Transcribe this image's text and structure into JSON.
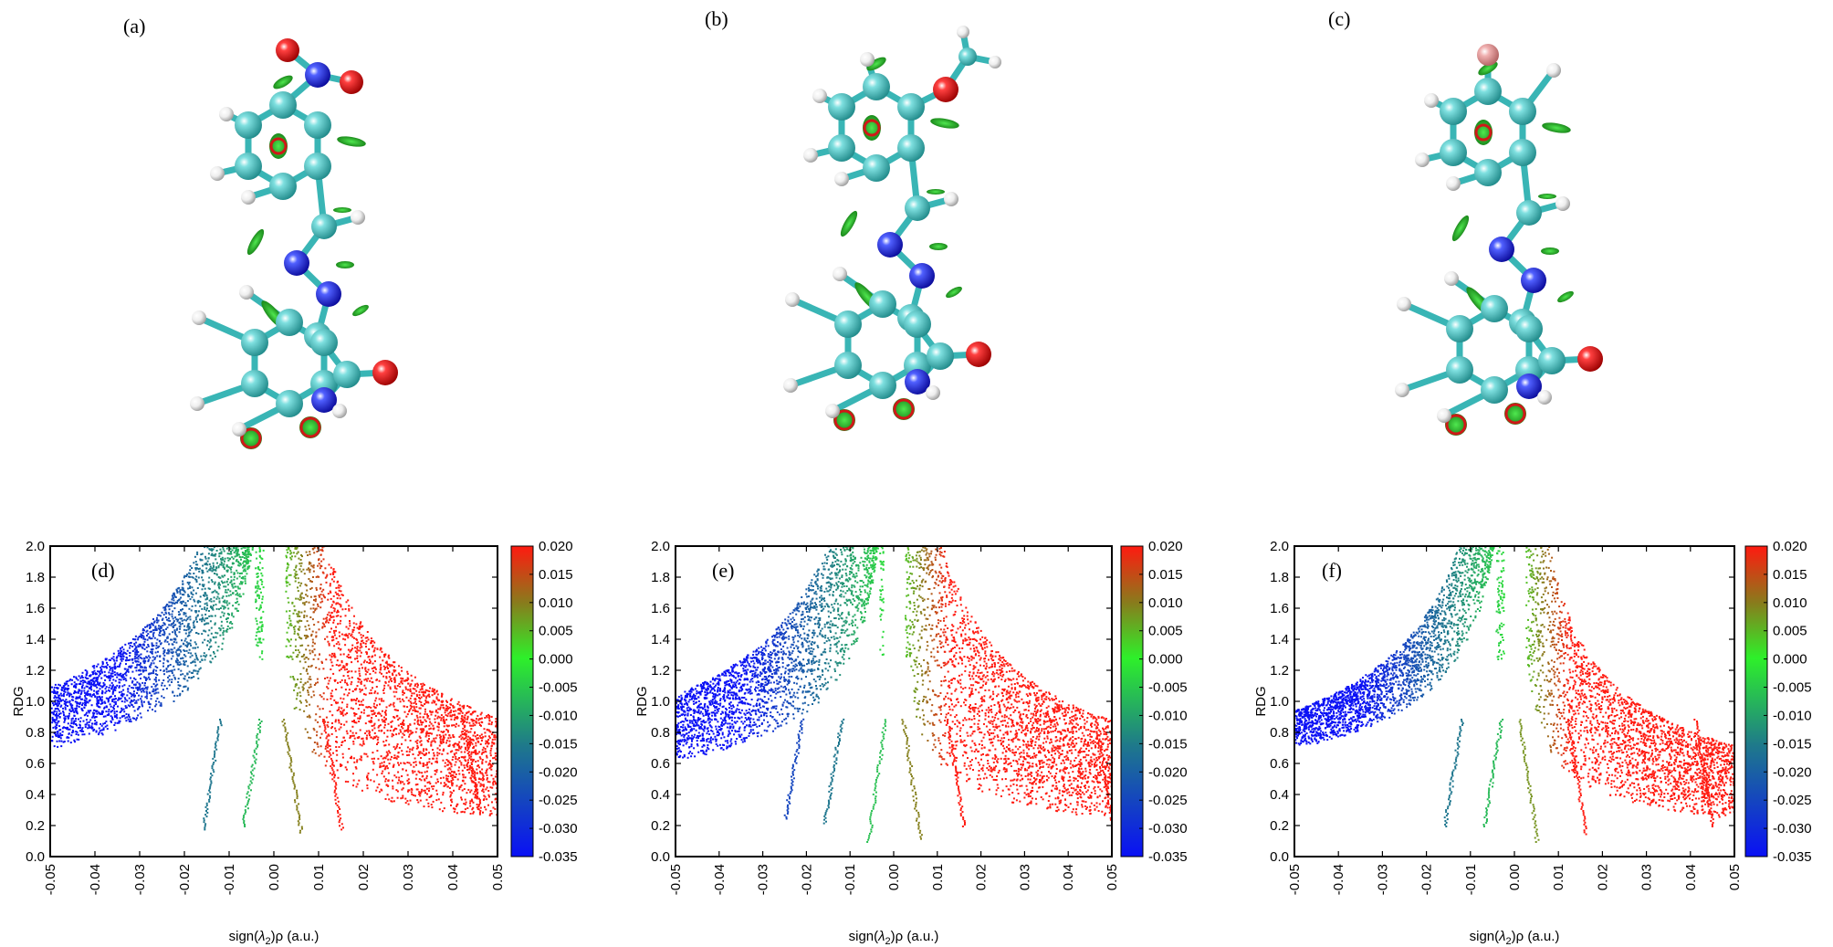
{
  "molecule_panels": [
    {
      "label": "(a)",
      "substituent": "nitro"
    },
    {
      "label": "(b)",
      "substituent": "methoxy"
    },
    {
      "label": "(c)",
      "substituent": "halogen"
    }
  ],
  "colors": {
    "carbon": "#3fb8b8",
    "nitrogen": "#1f2ee0",
    "oxygen": "#e01010",
    "hydrogen": "#e8e8e8",
    "halogen": "#e7a2a2",
    "bond": "#39b5b5",
    "isosurface_green": "#2fd12f",
    "isosurface_red": "#d01818"
  },
  "chart_data": [
    {
      "type": "scatter",
      "panel_label": "(d)",
      "xlabel": "sign(λ2)ρ (a.u.)",
      "ylabel": "RDG",
      "xlim": [
        -0.05,
        0.05
      ],
      "ylim": [
        0.0,
        2.0
      ],
      "xticks": [
        "-0.05",
        "-0.04",
        "-0.03",
        "-0.02",
        "-0.01",
        "0.00",
        "0.01",
        "0.02",
        "0.03",
        "0.04",
        "0.05"
      ],
      "yticks": [
        "0.0",
        "0.2",
        "0.4",
        "0.6",
        "0.8",
        "1.0",
        "1.2",
        "1.4",
        "1.6",
        "1.8",
        "2.0"
      ],
      "colorbar": {
        "range": [
          -0.035,
          0.02
        ],
        "ticks": [
          "0.020",
          "0.015",
          "0.010",
          "0.005",
          "0.000",
          "-0.005",
          "-0.010",
          "-0.015",
          "-0.020",
          "-0.025",
          "-0.030",
          "-0.035"
        ]
      },
      "spike_points": [
        [
          -0.016,
          0.18
        ],
        [
          -0.007,
          0.2
        ],
        [
          0.006,
          0.16
        ],
        [
          0.015,
          0.18
        ],
        [
          0.046,
          0.3
        ]
      ],
      "band": {
        "left_low_at_edge": 0.7,
        "left_high_at_edge": 1.1,
        "right_low_at_edge": 0.25,
        "right_high_at_edge": 0.9
      }
    },
    {
      "type": "scatter",
      "panel_label": "(e)",
      "xlabel": "sign(λ2)ρ (a.u.)",
      "ylabel": "RDG",
      "xlim": [
        -0.05,
        0.05
      ],
      "ylim": [
        0.0,
        2.0
      ],
      "xticks": [
        "-0.05",
        "-0.04",
        "-0.03",
        "-0.02",
        "-0.01",
        "0.00",
        "0.01",
        "0.02",
        "0.03",
        "0.04",
        "0.05"
      ],
      "yticks": [
        "0.0",
        "0.2",
        "0.4",
        "0.6",
        "0.8",
        "1.0",
        "1.2",
        "1.4",
        "1.6",
        "1.8",
        "2.0"
      ],
      "colorbar": {
        "range": [
          -0.035,
          0.02
        ],
        "ticks": [
          "0.020",
          "0.015",
          "0.010",
          "0.005",
          "0.000",
          "-0.005",
          "-0.010",
          "-0.015",
          "-0.020",
          "-0.025",
          "-0.030",
          "-0.035"
        ]
      },
      "spike_points": [
        [
          -0.025,
          0.25
        ],
        [
          -0.016,
          0.22
        ],
        [
          -0.006,
          0.1
        ],
        [
          0.006,
          0.12
        ],
        [
          0.016,
          0.2
        ],
        [
          0.05,
          0.22
        ]
      ],
      "band": {
        "left_low_at_edge": 0.62,
        "left_high_at_edge": 1.05,
        "right_low_at_edge": 0.25,
        "right_high_at_edge": 0.88
      }
    },
    {
      "type": "scatter",
      "panel_label": "(f)",
      "xlabel": "sign(λ2)ρ (a.u.)",
      "ylabel": "RDG",
      "xlim": [
        -0.05,
        0.05
      ],
      "ylim": [
        0.0,
        2.0
      ],
      "xticks": [
        "-0.05",
        "-0.04",
        "-0.03",
        "-0.02",
        "-0.01",
        "0.00",
        "0.01",
        "0.02",
        "0.03",
        "0.04",
        "0.05"
      ],
      "yticks": [
        "0.0",
        "0.2",
        "0.4",
        "0.6",
        "0.8",
        "1.0",
        "1.2",
        "1.4",
        "1.6",
        "1.8",
        "2.0"
      ],
      "colorbar": {
        "range": [
          -0.035,
          0.02
        ],
        "ticks": [
          "0.020",
          "0.015",
          "0.010",
          "0.005",
          "0.000",
          "-0.005",
          "-0.010",
          "-0.015",
          "-0.020",
          "-0.025",
          "-0.030",
          "-0.035"
        ]
      },
      "spike_points": [
        [
          -0.016,
          0.2
        ],
        [
          -0.007,
          0.2
        ],
        [
          0.005,
          0.1
        ],
        [
          0.016,
          0.15
        ],
        [
          0.045,
          0.2
        ]
      ],
      "band": {
        "left_low_at_edge": 0.7,
        "left_high_at_edge": 0.95,
        "right_low_at_edge": 0.25,
        "right_high_at_edge": 0.72
      }
    }
  ]
}
